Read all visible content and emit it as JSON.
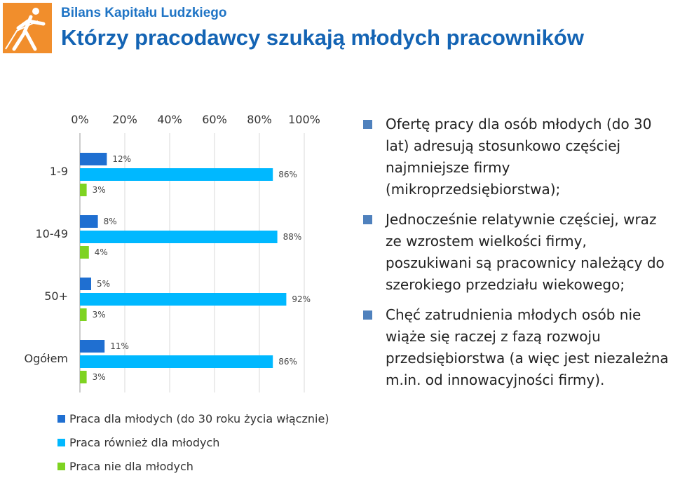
{
  "header": {
    "subtitle": "Bilans Kapitału Ludzkiego",
    "title": "Którzy pracodawcy szukają młodych pracowników"
  },
  "colors": {
    "logo": "#f18e2c",
    "title": "#1464b4",
    "series_young": "#1f6fd1",
    "series_also": "#00b8ff",
    "series_not": "#7ed321",
    "bullet": "#4f81bd"
  },
  "chart_data": {
    "type": "bar",
    "orientation": "horizontal",
    "categories": [
      "1-9",
      "10-49",
      "50+",
      "Ogółem"
    ],
    "x_ticks": [
      "0%",
      "20%",
      "40%",
      "60%",
      "80%",
      "100%"
    ],
    "xlim": [
      0,
      100
    ],
    "grid": true,
    "legend_position": "bottom",
    "series": [
      {
        "name": "Praca dla młodych (do 30 roku życia włącznie)",
        "values": [
          12,
          8,
          5,
          11
        ],
        "labels": [
          "12%",
          "8%",
          "5%",
          "11%"
        ]
      },
      {
        "name": "Praca również dla młodych",
        "values": [
          86,
          88,
          92,
          86
        ],
        "labels": [
          "86%",
          "88%",
          "92%",
          "86%"
        ]
      },
      {
        "name": "Praca nie dla młodych",
        "values": [
          3,
          4,
          3,
          3
        ],
        "labels": [
          "3%",
          "4%",
          "3%",
          "3%"
        ]
      }
    ]
  },
  "bullets": [
    "Ofertę pracy dla osób młodych (do 30 lat) adresują stosunkowo częściej najmniejsze firmy (mikroprzedsiębiorstwa);",
    "Jednocześnie relatywnie częściej, wraz ze wzrostem wielkości firmy, poszukiwani są pracownicy należący do szerokiego przedziału wiekowego;",
    "Chęć zatrudnienia młodych osób nie wiąże się raczej z fazą rozwoju przedsiębiorstwa (a więc jest niezależna m.in. od innowacyjności firmy)."
  ]
}
